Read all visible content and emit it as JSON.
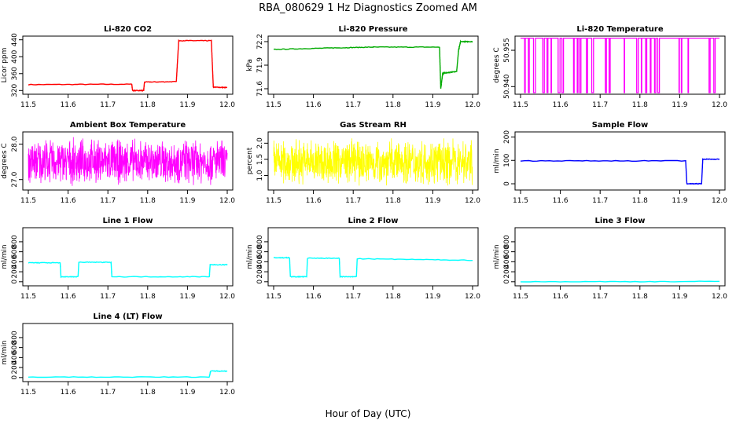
{
  "page": {
    "title": "RBA_080629  1 Hz Diagnostics Zoomed AM",
    "xlabel": "Hour of Day (UTC)"
  },
  "chart_data": [
    {
      "id": "p1",
      "type": "line",
      "title": "Li-820 CO2",
      "ylabel": "Licor ppm",
      "color": "#ff0000",
      "xlim": [
        11.5,
        12.0
      ],
      "ylim": [
        315,
        445
      ],
      "xticks": [
        11.5,
        11.6,
        11.7,
        11.8,
        11.9,
        12.0
      ],
      "yticks": [
        320,
        360,
        400,
        440
      ],
      "series": [
        {
          "x": [
            11.5,
            11.76,
            11.762,
            11.79,
            11.792,
            11.872,
            11.878,
            11.96,
            11.965,
            12.0
          ],
          "y": [
            334,
            335,
            320,
            320,
            340,
            341,
            438,
            438,
            328,
            327
          ]
        }
      ]
    },
    {
      "id": "p2",
      "type": "line",
      "title": "Li-820 Pressure",
      "ylabel": "kPa",
      "color": "#00aa00",
      "xlim": [
        11.5,
        12.0
      ],
      "ylim": [
        71.55,
        72.25
      ],
      "xticks": [
        11.5,
        11.6,
        11.7,
        11.8,
        11.9,
        12.0
      ],
      "yticks": [
        71.6,
        71.9,
        72.2
      ],
      "series": [
        {
          "x": [
            11.5,
            11.65,
            11.75,
            11.917,
            11.92,
            11.925,
            11.93,
            11.96,
            11.965,
            11.97,
            12.0
          ],
          "y": [
            72.1,
            72.12,
            72.13,
            72.13,
            71.6,
            71.8,
            71.8,
            71.82,
            72.1,
            72.2,
            72.2
          ]
        }
      ]
    },
    {
      "id": "p3",
      "type": "line",
      "title": "Li-820 Temperature",
      "ylabel": "degrees C",
      "color": "#ff00ff",
      "xlim": [
        11.5,
        12.0
      ],
      "ylim": [
        50.9375,
        50.9602
      ],
      "xticks": [
        11.5,
        11.6,
        11.7,
        11.8,
        11.9,
        12.0
      ],
      "yticks": [
        50.94,
        50.955
      ],
      "ytickdecimals": 3,
      "values": [
        50.9375,
        50.96
      ]
    },
    {
      "id": "p4",
      "type": "line",
      "title": "Ambient Box Temperature",
      "ylabel": "degrees C",
      "color": "#ff00ff",
      "xlim": [
        11.5,
        12.0
      ],
      "ylim": [
        26.75,
        28.3
      ],
      "xticks": [
        11.5,
        11.6,
        11.7,
        11.8,
        11.9,
        12.0
      ],
      "yticks": [
        27.0,
        28.0
      ],
      "ytickdecimals": 1,
      "noise_range": [
        26.8,
        28.2
      ]
    },
    {
      "id": "p5",
      "type": "line",
      "title": "Gas Stream RH",
      "ylabel": "percent",
      "color": "#ffff00",
      "xlim": [
        11.5,
        12.0
      ],
      "ylim": [
        0.6,
        2.3
      ],
      "xticks": [
        11.5,
        11.6,
        11.7,
        11.8,
        11.9,
        12.0
      ],
      "yticks": [
        1.0,
        1.5,
        2.0
      ],
      "ytickdecimals": 1,
      "noise_range": [
        0.65,
        2.2
      ]
    },
    {
      "id": "p6",
      "type": "line",
      "title": "Sample Flow",
      "ylabel": "ml/min",
      "color": "#0000ff",
      "xlim": [
        11.5,
        12.0
      ],
      "ylim": [
        -20,
        215
      ],
      "xticks": [
        11.5,
        11.6,
        11.7,
        11.8,
        11.9,
        12.0
      ],
      "yticks": [
        0,
        100,
        200
      ],
      "series": [
        {
          "x": [
            11.5,
            11.915,
            11.918,
            11.955,
            11.958,
            12.0
          ],
          "y": [
            98,
            98,
            0,
            0,
            105,
            105
          ]
        }
      ]
    },
    {
      "id": "p7",
      "type": "line",
      "title": "Line 1 Flow",
      "ylabel": "ml/min",
      "color": "#00ffff",
      "xlim": [
        11.5,
        12.0
      ],
      "ylim": [
        -50,
        1050
      ],
      "xticks": [
        11.5,
        11.6,
        11.7,
        11.8,
        11.9,
        12.0
      ],
      "yticks": [
        0,
        200,
        400,
        600,
        800
      ],
      "series": [
        {
          "x": [
            11.5,
            11.58,
            11.582,
            11.625,
            11.627,
            11.708,
            11.71,
            11.955,
            11.957,
            12.0
          ],
          "y": [
            380,
            380,
            100,
            100,
            390,
            390,
            100,
            100,
            340,
            340
          ]
        }
      ]
    },
    {
      "id": "p8",
      "type": "line",
      "title": "Line 2 Flow",
      "ylabel": "ml/min",
      "color": "#00ffff",
      "xlim": [
        11.5,
        12.0
      ],
      "ylim": [
        -50,
        1050
      ],
      "xticks": [
        11.5,
        11.6,
        11.7,
        11.8,
        11.9,
        12.0
      ],
      "yticks": [
        0,
        200,
        400,
        600,
        800
      ],
      "series": [
        {
          "x": [
            11.5,
            11.54,
            11.542,
            11.583,
            11.585,
            11.665,
            11.667,
            11.708,
            11.71,
            12.0
          ],
          "y": [
            480,
            480,
            100,
            100,
            470,
            470,
            100,
            100,
            460,
            430
          ]
        }
      ]
    },
    {
      "id": "p9",
      "type": "line",
      "title": "Line 3 Flow",
      "ylabel": "ml/min",
      "color": "#00ffff",
      "xlim": [
        11.5,
        12.0
      ],
      "ylim": [
        -50,
        1050
      ],
      "xticks": [
        11.5,
        11.6,
        11.7,
        11.8,
        11.9,
        12.0
      ],
      "yticks": [
        0,
        200,
        400,
        600,
        800
      ],
      "series": [
        {
          "x": [
            11.5,
            12.0
          ],
          "y": [
            0,
            5
          ]
        }
      ]
    },
    {
      "id": "p10",
      "type": "line",
      "title": "Line 4 (LT) Flow",
      "ylabel": "ml/min",
      "color": "#00ffff",
      "xlim": [
        11.5,
        12.0
      ],
      "ylim": [
        -50,
        1050
      ],
      "xticks": [
        11.5,
        11.6,
        11.7,
        11.8,
        11.9,
        12.0
      ],
      "yticks": [
        0,
        200,
        400,
        600,
        800
      ],
      "series": [
        {
          "x": [
            11.5,
            11.955,
            11.958,
            12.0
          ],
          "y": [
            10,
            10,
            130,
            130
          ]
        }
      ]
    }
  ]
}
